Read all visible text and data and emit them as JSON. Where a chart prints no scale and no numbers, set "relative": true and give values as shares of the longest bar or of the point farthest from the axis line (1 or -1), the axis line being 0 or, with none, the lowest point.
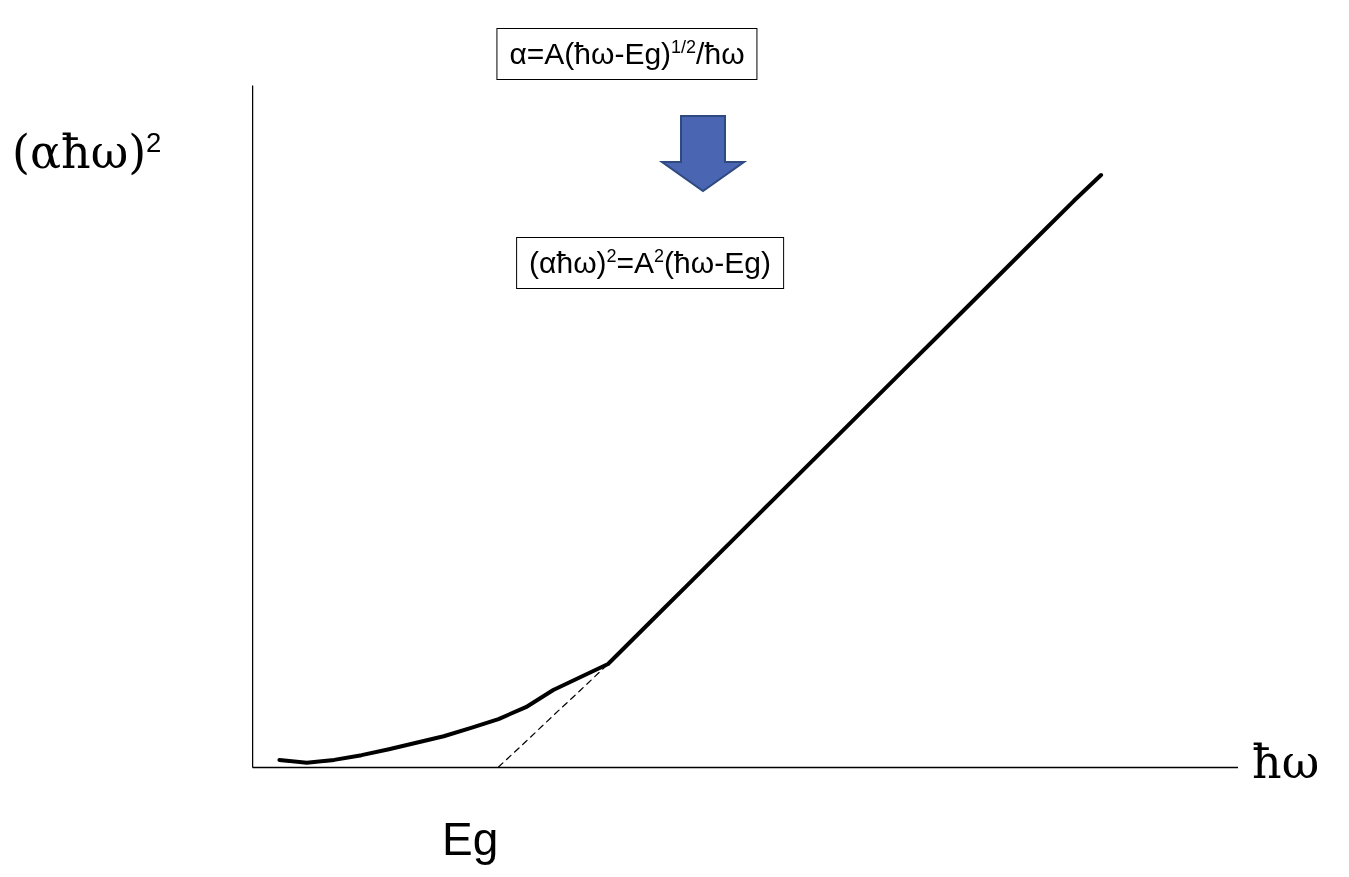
{
  "chart_data": {
    "type": "line",
    "relative": true,
    "xlabel": "ħω",
    "ylabel": "(αħω)$^{2}$",
    "annotations": [
      "α=A(ħω-Eg)$^{1/2}$/ħω",
      "(αħω)$^{2}$=A$^{2}$(ħω-Eg)",
      "Eg"
    ],
    "categories": [
      null,
      null,
      null,
      null,
      null,
      null,
      null,
      null,
      null,
      null,
      null,
      null,
      null,
      null,
      null,
      null,
      null,
      null,
      null,
      null,
      null,
      null,
      null,
      null,
      null,
      null,
      null,
      null,
      null,
      null,
      null,
      null,
      null,
      null,
      null,
      null,
      null
    ],
    "series": [
      {
        "color": "#000000",
        "line_style": "solid",
        "values": [
          null,
          0.012,
          0.007,
          0.012,
          0.02,
          0.03,
          0.041,
          0.052,
          0.066,
          0.081,
          0.101,
          0.13,
          0.152,
          0.174,
          0.22,
          0.266,
          0.312,
          0.358,
          0.404,
          0.45,
          0.496,
          0.542,
          0.588,
          0.634,
          0.68,
          0.726,
          0.772,
          0.818,
          0.864,
          0.91,
          0.956,
          1.0,
          null,
          null,
          null,
          null,
          null
        ]
      },
      {
        "color": "#000000",
        "line_style": "dashed",
        "values": [
          null,
          null,
          null,
          null,
          null,
          null,
          null,
          null,
          null,
          0,
          0.043,
          0.087,
          0.13,
          0.174,
          null,
          null,
          null,
          null,
          null,
          null,
          null,
          null,
          null,
          null,
          null,
          null,
          null,
          null,
          null,
          null,
          null,
          null,
          null,
          null,
          null,
          null,
          null
        ]
      }
    ]
  }
}
